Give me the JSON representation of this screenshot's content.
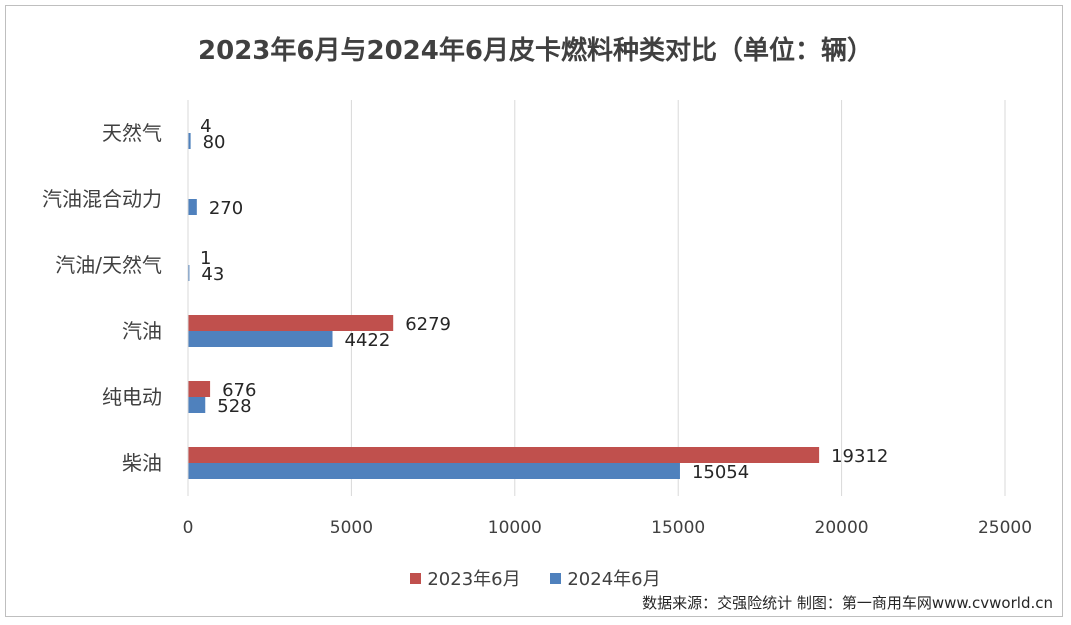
{
  "title": "2023年6月与2024年6月皮卡燃料种类对比（单位：辆）",
  "source": "数据来源：交强险统计 制图：第一商用车网www.cvworld.cn",
  "colors": {
    "series_2023": "#C0504D",
    "series_2024": "#4F81BD",
    "grid": "#d9d9d9",
    "text": "#404040"
  },
  "chart_data": {
    "type": "bar",
    "orientation": "horizontal",
    "categories": [
      "天然气",
      "汽油混合动力",
      "汽油/天然气",
      "汽油",
      "纯电动",
      "柴油"
    ],
    "series": [
      {
        "name": "2023年6月",
        "values": [
          4,
          null,
          1,
          6279,
          676,
          19312
        ]
      },
      {
        "name": "2024年6月",
        "values": [
          80,
          270,
          43,
          4422,
          528,
          15054
        ]
      }
    ],
    "x_ticks": [
      "0",
      "5000",
      "10000",
      "15000",
      "20000",
      "25000"
    ],
    "xlim": [
      0,
      25000
    ],
    "grid": true,
    "legend_position": "bottom"
  }
}
